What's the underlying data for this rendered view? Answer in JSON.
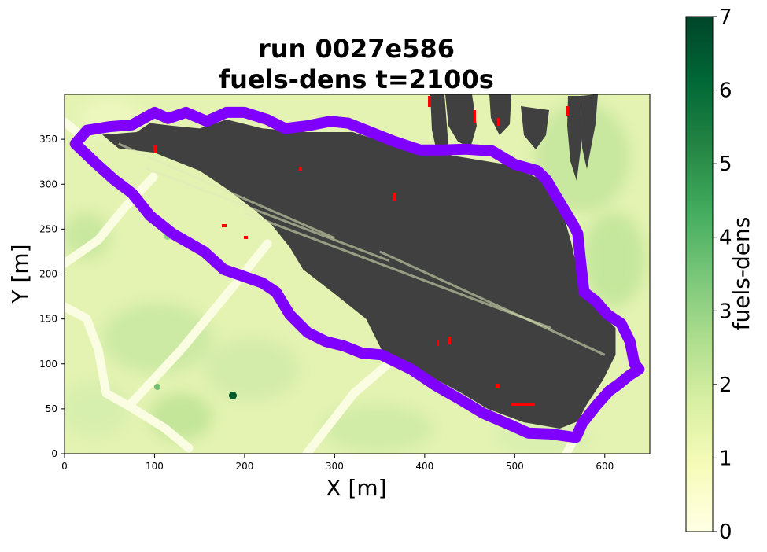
{
  "chart_data": {
    "type": "heatmap",
    "title_line1": "run 0027e586",
    "title_line2": "fuels-dens t=2100s",
    "xlabel": "X [m]",
    "ylabel": "Y [m]",
    "xlim": [
      0,
      650
    ],
    "ylim": [
      0,
      400
    ],
    "x_ticks": [
      0,
      100,
      200,
      300,
      400,
      500,
      600
    ],
    "y_ticks": [
      0,
      50,
      100,
      150,
      200,
      250,
      300,
      350
    ],
    "colorbar": {
      "label": "fuels-dens",
      "range": [
        0,
        7
      ],
      "ticks": [
        0,
        1,
        2,
        3,
        4,
        5,
        6,
        7
      ],
      "colormap": "YlGn",
      "colors": [
        "#ffffe5",
        "#f7fcb9",
        "#d9f0a3",
        "#addd8e",
        "#78c679",
        "#41ab5d",
        "#238443",
        "#006837",
        "#004529"
      ]
    },
    "burned_area_color": "#404040",
    "fire_front_color": "#ff0000",
    "perimeter_color": "#8000ff",
    "perimeter": [
      [
        12,
        345
      ],
      [
        25,
        360
      ],
      [
        50,
        364
      ],
      [
        75,
        366
      ],
      [
        100,
        380
      ],
      [
        115,
        373
      ],
      [
        135,
        380
      ],
      [
        158,
        370
      ],
      [
        180,
        380
      ],
      [
        200,
        380
      ],
      [
        225,
        372
      ],
      [
        245,
        362
      ],
      [
        270,
        365
      ],
      [
        295,
        370
      ],
      [
        315,
        368
      ],
      [
        340,
        358
      ],
      [
        365,
        348
      ],
      [
        395,
        338
      ],
      [
        420,
        338
      ],
      [
        445,
        339
      ],
      [
        475,
        337
      ],
      [
        500,
        322
      ],
      [
        525,
        315
      ],
      [
        535,
        305
      ],
      [
        550,
        280
      ],
      [
        565,
        255
      ],
      [
        570,
        245
      ],
      [
        573,
        215
      ],
      [
        577,
        180
      ],
      [
        590,
        170
      ],
      [
        603,
        155
      ],
      [
        618,
        145
      ],
      [
        628,
        125
      ],
      [
        633,
        100
      ],
      [
        638,
        94
      ],
      [
        627,
        87
      ],
      [
        615,
        77
      ],
      [
        605,
        70
      ],
      [
        590,
        53
      ],
      [
        575,
        34
      ],
      [
        568,
        18
      ],
      [
        540,
        22
      ],
      [
        515,
        23
      ],
      [
        495,
        32
      ],
      [
        465,
        45
      ],
      [
        440,
        60
      ],
      [
        412,
        76
      ],
      [
        385,
        94
      ],
      [
        352,
        110
      ],
      [
        330,
        112
      ],
      [
        310,
        120
      ],
      [
        290,
        125
      ],
      [
        270,
        135
      ],
      [
        250,
        155
      ],
      [
        235,
        180
      ],
      [
        220,
        190
      ],
      [
        200,
        197
      ],
      [
        177,
        205
      ],
      [
        155,
        225
      ],
      [
        120,
        245
      ],
      [
        95,
        265
      ],
      [
        75,
        290
      ],
      [
        55,
        305
      ],
      [
        35,
        323
      ]
    ],
    "burned_region": [
      [
        42,
        355
      ],
      [
        80,
        358
      ],
      [
        95,
        368
      ],
      [
        120,
        365
      ],
      [
        150,
        362
      ],
      [
        180,
        372
      ],
      [
        220,
        362
      ],
      [
        270,
        358
      ],
      [
        320,
        358
      ],
      [
        370,
        342
      ],
      [
        430,
        332
      ],
      [
        490,
        322
      ],
      [
        530,
        305
      ],
      [
        555,
        262
      ],
      [
        562,
        238
      ],
      [
        568,
        212
      ],
      [
        574,
        182
      ],
      [
        592,
        160
      ],
      [
        612,
        140
      ],
      [
        612,
        110
      ],
      [
        598,
        82
      ],
      [
        580,
        55
      ],
      [
        570,
        36
      ],
      [
        550,
        28
      ],
      [
        510,
        35
      ],
      [
        470,
        50
      ],
      [
        440,
        68
      ],
      [
        410,
        84
      ],
      [
        380,
        96
      ],
      [
        352,
        116
      ],
      [
        335,
        150
      ],
      [
        300,
        178
      ],
      [
        265,
        205
      ],
      [
        250,
        230
      ],
      [
        230,
        255
      ],
      [
        210,
        272
      ],
      [
        180,
        295
      ],
      [
        150,
        315
      ],
      [
        100,
        335
      ],
      [
        60,
        340
      ]
    ]
  }
}
